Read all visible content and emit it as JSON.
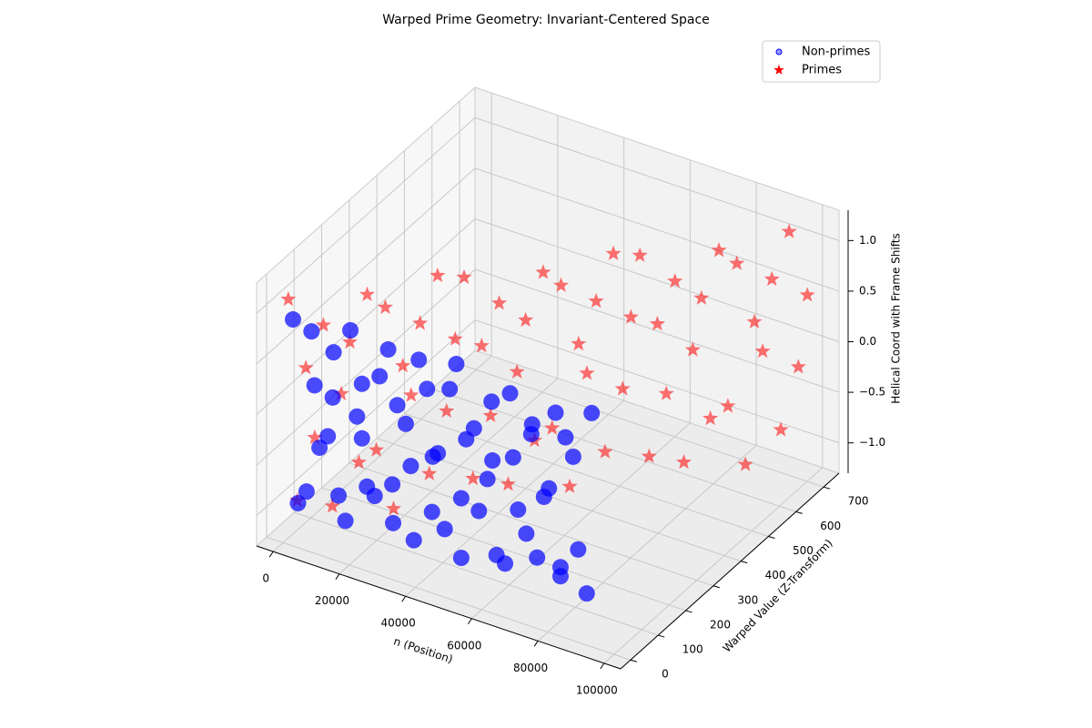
{
  "chart_data": {
    "type": "scatter3d",
    "title": "Warped Prime Geometry: Invariant-Centered Space",
    "xlabel": "n (Position)",
    "ylabel": "Warped Value (Z-Transform)",
    "zlabel": "Helical Coord with Frame Shifts",
    "xlim": [
      -5000,
      105000
    ],
    "ylim": [
      -36,
      756
    ],
    "zlim": [
      -1.3,
      1.3
    ],
    "xticks": [
      0,
      20000,
      40000,
      60000,
      80000,
      100000
    ],
    "yticks": [
      0,
      100,
      200,
      300,
      400,
      500,
      600,
      700
    ],
    "zticks": [
      {
        "value": -1,
        "label": "−1.0"
      },
      {
        "value": -0.5,
        "label": "−0.5"
      },
      {
        "value": 0,
        "label": "0.0"
      },
      {
        "value": 0.5,
        "label": "0.5"
      },
      {
        "value": 1,
        "label": "1.0"
      }
    ],
    "grid": true,
    "legend": "upper right",
    "series": [
      {
        "name": "Primes",
        "color": "#ff0000",
        "marker": "star",
        "x": [
          1000,
          2700,
          4300,
          6000,
          7600,
          9300,
          11000,
          12600,
          14300,
          15900,
          17600,
          19300,
          20900,
          22600,
          24200,
          25900,
          27600,
          29200,
          30900,
          32500,
          34200,
          35900,
          37500,
          39200,
          40800,
          42500,
          44200,
          45800,
          47500,
          49100,
          50800,
          52500,
          54100,
          55800,
          57400,
          59100,
          60800,
          62400,
          64100,
          65700,
          67400,
          69100,
          70700,
          72400,
          74000,
          75700,
          77400,
          79000,
          80700,
          82300,
          84000,
          85700,
          87300,
          89000,
          90600,
          92300,
          94000,
          95600,
          97300,
          99000
        ],
        "y": [
          7,
          19,
          31,
          43,
          55,
          67,
          79,
          91,
          103,
          114,
          127,
          139,
          150,
          163,
          174,
          186,
          199,
          210,
          222,
          234,
          246,
          258,
          270,
          282,
          294,
          306,
          318,
          330,
          342,
          354,
          366,
          378,
          390,
          402,
          413,
          426,
          438,
          449,
          462,
          473,
          485,
          498,
          509,
          521,
          533,
          545,
          557,
          569,
          581,
          593,
          605,
          617,
          629,
          641,
          652,
          665,
          677,
          688,
          701,
          713
        ],
        "z": [
          1.1,
          -0.9,
          0.4,
          -0.3,
          0.8,
          -1.0,
          0.1,
          0.6,
          -0.6,
          1.05,
          -0.5,
          0.9,
          -1.1,
          0.3,
          0.0,
          0.7,
          -0.8,
          1.15,
          -0.2,
          0.5,
          1.1,
          -0.9,
          0.4,
          -0.3,
          0.8,
          -1.0,
          0.1,
          0.6,
          -0.6,
          1.05,
          -0.5,
          0.9,
          -1.1,
          0.3,
          0.0,
          0.7,
          -0.8,
          1.15,
          -0.2,
          0.5,
          1.1,
          -0.9,
          0.4,
          -0.3,
          0.8,
          -1.0,
          0.1,
          0.6,
          -0.6,
          1.05,
          -0.5,
          0.9,
          -1.1,
          0.3,
          0.0,
          0.7,
          -0.8,
          1.15,
          -0.2,
          0.5
        ]
      },
      {
        "name": "Non-primes",
        "color": "#0000ff",
        "marker": "circle",
        "x": [
          2000,
          5000,
          8000,
          11000,
          14000,
          17000,
          20000,
          23000,
          26000,
          29000,
          32000,
          35000,
          38000,
          41000,
          44000,
          47000,
          50000,
          53000,
          56000,
          59000,
          62000,
          65000,
          68000,
          71000,
          74000,
          77000,
          80000,
          83000,
          86000,
          89000,
          3500,
          6500,
          9500,
          12500,
          15500,
          18500,
          21500,
          24500,
          27500,
          30500,
          33500,
          36500,
          39500,
          42500,
          45500,
          48500,
          51500,
          54500,
          57500,
          60500,
          63500,
          66500,
          69500,
          72500,
          75500,
          78500,
          81500,
          84500,
          87500,
          90500
        ],
        "y": [
          12,
          25,
          18,
          30,
          15,
          22,
          28,
          10,
          20,
          33,
          12,
          25,
          18,
          30,
          15,
          22,
          28,
          10,
          20,
          33,
          12,
          25,
          18,
          30,
          15,
          22,
          28,
          10,
          20,
          33,
          12,
          25,
          18,
          30,
          15,
          22,
          28,
          10,
          20,
          33,
          12,
          25,
          18,
          30,
          15,
          22,
          28,
          10,
          20,
          33,
          12,
          25,
          18,
          30,
          15,
          22,
          28,
          10,
          20,
          33
        ],
        "z": [
          0.9,
          -0.8,
          0.3,
          -0.2,
          0.7,
          -0.95,
          0.1,
          0.5,
          -0.6,
          0.85,
          -0.4,
          0.2,
          -0.9,
          0.6,
          0.0,
          -0.7,
          0.95,
          -0.3,
          0.4,
          -0.1,
          0.75,
          -0.85,
          0.25,
          -0.5,
          0.65,
          -0.05,
          0.8,
          -0.65,
          0.45,
          -0.9,
          -0.9,
          0.8,
          -0.3,
          0.2,
          -0.7,
          0.95,
          -0.1,
          -0.5,
          0.6,
          -0.85,
          0.4,
          -0.2,
          0.9,
          -0.6,
          0.05,
          0.7,
          -0.95,
          0.3,
          -0.4,
          0.1,
          -0.75,
          0.85,
          -0.25,
          0.5,
          -0.65,
          0.05,
          -0.8,
          0.65,
          -0.45,
          0.9
        ]
      }
    ]
  }
}
